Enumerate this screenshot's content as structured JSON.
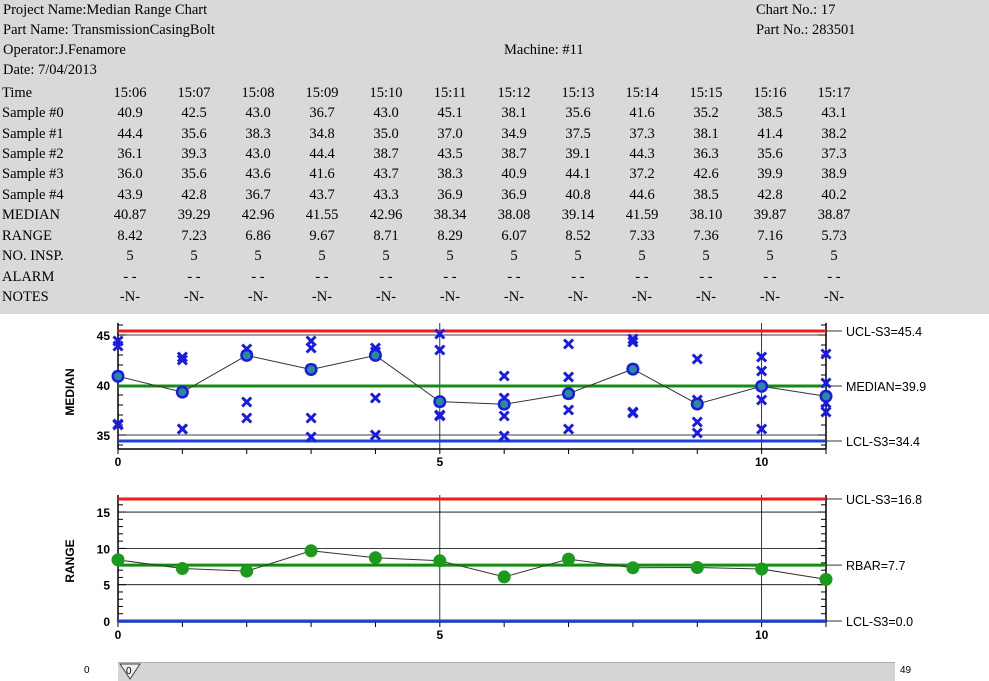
{
  "header": {
    "project": "Project Name:Median Range Chart",
    "part_name": "Part Name: TransmissionCasingBolt",
    "operator": "Operator:J.Fenamore",
    "date": "Date: 7/04/2013",
    "machine": "Machine: #11",
    "chart_no": "Chart No.: 17",
    "part_no": "Part No.: 283501"
  },
  "table": {
    "rows": [
      {
        "label": "Time",
        "values": [
          "15:06",
          "15:07",
          "15:08",
          "15:09",
          "15:10",
          "15:11",
          "15:12",
          "15:13",
          "15:14",
          "15:15",
          "15:16",
          "15:17"
        ]
      },
      {
        "label": "Sample #0",
        "values": [
          "40.9",
          "42.5",
          "43.0",
          "36.7",
          "43.0",
          "45.1",
          "38.1",
          "35.6",
          "41.6",
          "35.2",
          "38.5",
          "43.1"
        ]
      },
      {
        "label": "Sample #1",
        "values": [
          "44.4",
          "35.6",
          "38.3",
          "34.8",
          "35.0",
          "37.0",
          "34.9",
          "37.5",
          "37.3",
          "38.1",
          "41.4",
          "38.2"
        ]
      },
      {
        "label": "Sample #2",
        "values": [
          "36.1",
          "39.3",
          "43.0",
          "44.4",
          "38.7",
          "43.5",
          "38.7",
          "39.1",
          "44.3",
          "36.3",
          "35.6",
          "37.3"
        ]
      },
      {
        "label": "Sample #3",
        "values": [
          "36.0",
          "35.6",
          "43.6",
          "41.6",
          "43.7",
          "38.3",
          "40.9",
          "44.1",
          "37.2",
          "42.6",
          "39.9",
          "38.9"
        ]
      },
      {
        "label": "Sample #4",
        "values": [
          "43.9",
          "42.8",
          "36.7",
          "43.7",
          "43.3",
          "36.9",
          "36.9",
          "40.8",
          "44.6",
          "38.5",
          "42.8",
          "40.2"
        ]
      },
      {
        "label": "MEDIAN",
        "values": [
          "40.87",
          "39.29",
          "42.96",
          "41.55",
          "42.96",
          "38.34",
          "38.08",
          "39.14",
          "41.59",
          "38.10",
          "39.87",
          "38.87"
        ]
      },
      {
        "label": "RANGE",
        "values": [
          "8.42",
          "7.23",
          "6.86",
          "9.67",
          "8.71",
          "8.29",
          "6.07",
          "8.52",
          "7.33",
          "7.36",
          "7.16",
          "5.73"
        ]
      },
      {
        "label": "NO. INSP.",
        "values": [
          "5",
          "5",
          "5",
          "5",
          "5",
          "5",
          "5",
          "5",
          "5",
          "5",
          "5",
          "5"
        ]
      },
      {
        "label": "ALARM",
        "values": [
          "-   -",
          "-   -",
          "-   -",
          "-   -",
          "-   -",
          "-   -",
          "-   -",
          "-   -",
          "-   -",
          "-   -",
          "-   -",
          "-   -"
        ]
      },
      {
        "label": "NOTES",
        "values": [
          "-N-",
          "-N-",
          "-N-",
          "-N-",
          "-N-",
          "-N-",
          "-N-",
          "-N-",
          "-N-",
          "-N-",
          "-N-",
          "-N-"
        ]
      }
    ]
  },
  "colors": {
    "ucl": "#ee1c1c",
    "center": "#148c14",
    "lcl": "#1e3fd8",
    "samples": "#1a1ae6",
    "points": "#1c9a1c"
  },
  "chart_data": [
    {
      "type": "line",
      "ylabel": "MEDIAN",
      "x": [
        0,
        1,
        2,
        3,
        4,
        5,
        6,
        7,
        8,
        9,
        10,
        11
      ],
      "xlim": [
        0,
        11
      ],
      "ylim": [
        34,
        46
      ],
      "yticks": [
        35,
        40,
        45
      ],
      "xticks": [
        0,
        5,
        10
      ],
      "values": [
        40.87,
        39.29,
        42.96,
        41.55,
        42.96,
        38.34,
        38.08,
        39.14,
        41.59,
        38.1,
        39.87,
        38.87
      ],
      "samples": [
        [
          40.9,
          44.4,
          36.1,
          36.0,
          43.9
        ],
        [
          42.5,
          35.6,
          39.3,
          35.6,
          42.8
        ],
        [
          43.0,
          38.3,
          43.0,
          43.6,
          36.7
        ],
        [
          36.7,
          34.8,
          44.4,
          41.6,
          43.7
        ],
        [
          43.0,
          35.0,
          38.7,
          43.7,
          43.3
        ],
        [
          45.1,
          37.0,
          43.5,
          38.3,
          36.9
        ],
        [
          38.1,
          34.9,
          38.7,
          40.9,
          36.9
        ],
        [
          35.6,
          37.5,
          39.1,
          44.1,
          40.8
        ],
        [
          41.6,
          37.3,
          44.3,
          37.2,
          44.6
        ],
        [
          35.2,
          38.1,
          36.3,
          42.6,
          38.5
        ],
        [
          38.5,
          41.4,
          35.6,
          39.9,
          42.8
        ],
        [
          43.1,
          38.2,
          37.3,
          38.9,
          40.2
        ]
      ],
      "ucl": 45.4,
      "center": 39.9,
      "lcl": 34.4,
      "ucl_label": "UCL-S3=45.4",
      "center_label": "MEDIAN=39.9",
      "lcl_label": "LCL-S3=34.4"
    },
    {
      "type": "line",
      "ylabel": "RANGE",
      "x": [
        0,
        1,
        2,
        3,
        4,
        5,
        6,
        7,
        8,
        9,
        10,
        11
      ],
      "xlim": [
        0,
        11
      ],
      "ylim": [
        0,
        16.8
      ],
      "yticks": [
        0,
        5,
        10,
        15
      ],
      "xticks": [
        0,
        5,
        10
      ],
      "values": [
        8.42,
        7.23,
        6.86,
        9.67,
        8.71,
        8.29,
        6.07,
        8.52,
        7.33,
        7.36,
        7.16,
        5.73
      ],
      "ucl": 16.8,
      "center": 7.7,
      "lcl": 0.0,
      "ucl_label": "UCL-S3=16.8",
      "center_label": "RBAR=7.7",
      "lcl_label": "LCL-S3=0.0"
    }
  ],
  "scrollbar": {
    "min": "0",
    "max": "49",
    "value": "0"
  }
}
